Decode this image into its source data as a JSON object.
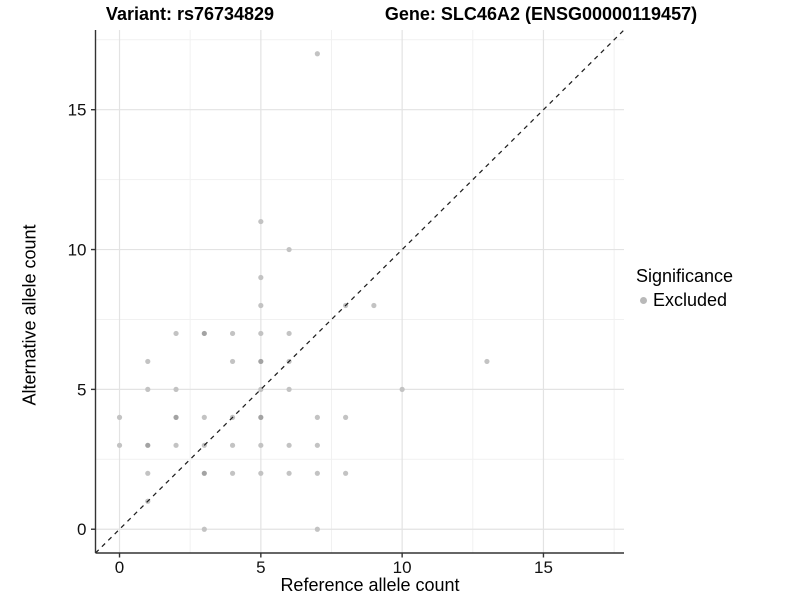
{
  "titles": {
    "variant": "Variant: rs76734829",
    "gene": "Gene: SLC46A2 (ENSG00000119457)"
  },
  "chart_data": {
    "type": "scatter",
    "title_left": "Variant: rs76734829",
    "title_right": "Gene: SLC46A2 (ENSG00000119457)",
    "xlabel": "Reference allele count",
    "ylabel": "Alternative allele count",
    "xlim": [
      -0.85,
      17.85
    ],
    "ylim": [
      -0.85,
      17.85
    ],
    "x_ticks": [
      0,
      5,
      10,
      15
    ],
    "y_ticks": [
      0,
      5,
      10,
      15
    ],
    "x_minor_gridlines": [
      2.5,
      7.5,
      12.5,
      17.5
    ],
    "y_minor_gridlines": [
      2.5,
      7.5,
      12.5,
      17.5
    ],
    "grid": true,
    "identity_line": {
      "style": "dashed",
      "equation": "y = x"
    },
    "legend_position": "right",
    "series": [
      {
        "name": "Excluded",
        "points": [
          [
            7,
            17,
            1
          ],
          [
            5,
            11,
            1
          ],
          [
            6,
            10,
            1
          ],
          [
            5,
            9,
            1
          ],
          [
            5,
            8,
            1
          ],
          [
            8,
            8,
            1
          ],
          [
            9,
            8,
            1
          ],
          [
            2,
            7,
            1
          ],
          [
            3,
            7,
            2
          ],
          [
            4,
            7,
            1
          ],
          [
            5,
            7,
            1
          ],
          [
            6,
            7,
            1
          ],
          [
            1,
            6,
            1
          ],
          [
            4,
            6,
            1
          ],
          [
            5,
            6,
            2
          ],
          [
            6,
            6,
            1
          ],
          [
            13,
            6,
            1
          ],
          [
            1,
            5,
            1
          ],
          [
            2,
            5,
            1
          ],
          [
            5,
            5,
            1
          ],
          [
            6,
            5,
            1
          ],
          [
            10,
            5,
            1
          ],
          [
            0,
            4,
            1
          ],
          [
            2,
            4,
            2
          ],
          [
            3,
            4,
            1
          ],
          [
            4,
            4,
            1
          ],
          [
            5,
            4,
            2
          ],
          [
            7,
            4,
            1
          ],
          [
            8,
            4,
            1
          ],
          [
            0,
            3,
            1
          ],
          [
            1,
            3,
            2
          ],
          [
            2,
            3,
            1
          ],
          [
            3,
            3,
            1
          ],
          [
            4,
            3,
            1
          ],
          [
            5,
            3,
            1
          ],
          [
            6,
            3,
            1
          ],
          [
            7,
            3,
            1
          ],
          [
            1,
            2,
            1
          ],
          [
            3,
            2,
            2
          ],
          [
            4,
            2,
            1
          ],
          [
            5,
            2,
            1
          ],
          [
            6,
            2,
            1
          ],
          [
            7,
            2,
            1
          ],
          [
            8,
            2,
            1
          ],
          [
            1,
            1,
            1
          ],
          [
            3,
            0,
            1
          ],
          [
            7,
            0,
            1
          ]
        ]
      }
    ]
  },
  "legend": {
    "title": "Significance",
    "items": [
      {
        "label": "Excluded",
        "color": "#b9b9b9"
      }
    ]
  },
  "colors": {
    "point": "#c3c3c3",
    "point_overlap": "#a3a3a3",
    "grid_major": "#e3e3e3",
    "grid_minor": "#f1f1f1",
    "axis_line": "#333333",
    "tick_label": "#111111",
    "dashed_line": "#1f1f1f",
    "background": "#ffffff"
  }
}
